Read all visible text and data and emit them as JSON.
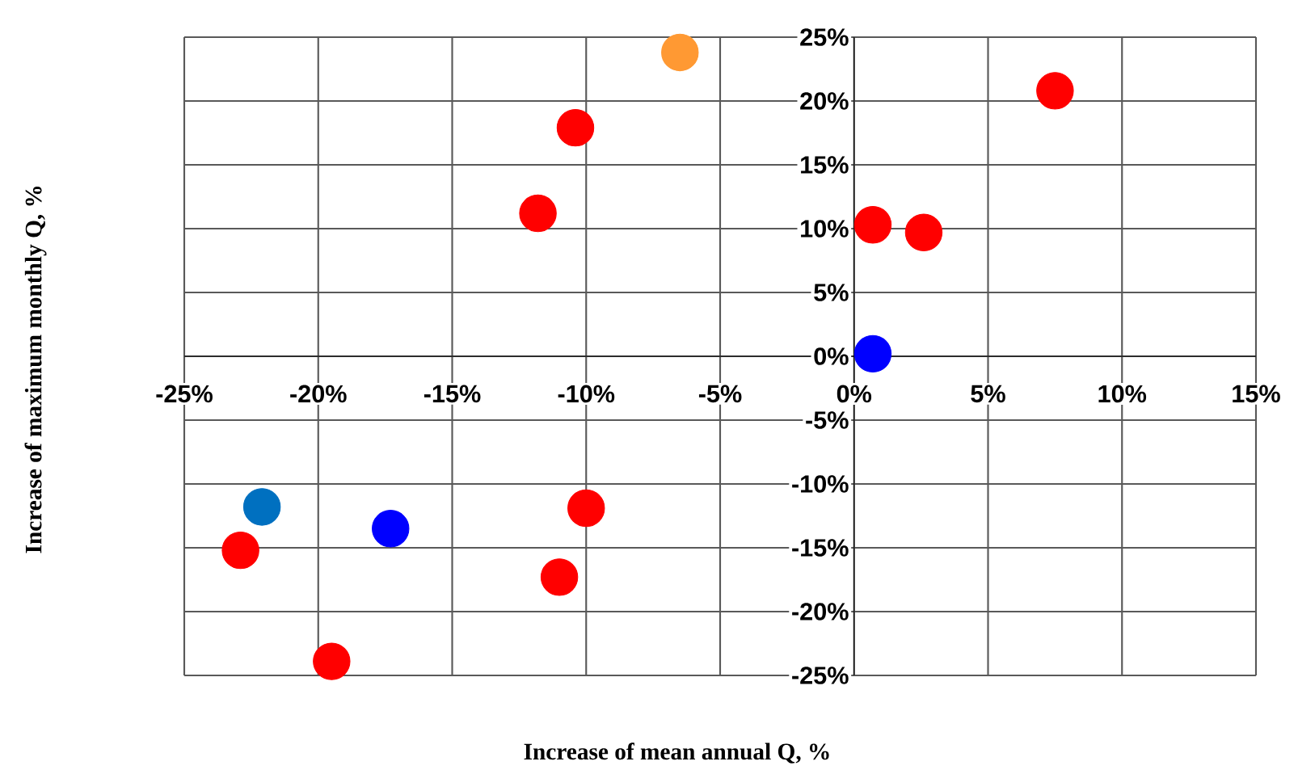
{
  "chart_data": {
    "type": "scatter",
    "xlabel": "Increase of mean annual Q, %",
    "ylabel": "Increase of maximum monthly Q, %",
    "xlim": [
      -25,
      15
    ],
    "ylim": [
      -25,
      25
    ],
    "xticks": [
      {
        "value": -25,
        "label": "-25%"
      },
      {
        "value": -20,
        "label": "-20%"
      },
      {
        "value": -15,
        "label": "-15%"
      },
      {
        "value": -10,
        "label": "-10%"
      },
      {
        "value": -5,
        "label": "-5%"
      },
      {
        "value": 0,
        "label": "0%"
      },
      {
        "value": 5,
        "label": "5%"
      },
      {
        "value": 10,
        "label": "10%"
      },
      {
        "value": 15,
        "label": "15%"
      }
    ],
    "yticks": [
      {
        "value": -25,
        "label": "-25%"
      },
      {
        "value": -20,
        "label": "-20%"
      },
      {
        "value": -15,
        "label": "-15%"
      },
      {
        "value": -10,
        "label": "-10%"
      },
      {
        "value": -5,
        "label": "-5%"
      },
      {
        "value": 0,
        "label": "0%"
      },
      {
        "value": 5,
        "label": "5%"
      },
      {
        "value": 10,
        "label": "10%"
      },
      {
        "value": 15,
        "label": "15%"
      },
      {
        "value": 20,
        "label": "20%"
      },
      {
        "value": 25,
        "label": "25%"
      }
    ],
    "grid": true,
    "series": [
      {
        "color": "#ff0000",
        "x": [
          7.5,
          -10.4,
          -11.8,
          0.7,
          2.6,
          -22.9,
          -10.0,
          -11.0,
          -19.5
        ],
        "values": [
          20.8,
          17.9,
          11.2,
          10.3,
          9.7,
          -15.2,
          -11.9,
          -17.3,
          -23.9
        ]
      },
      {
        "color": "#ff9933",
        "x": [
          -6.5
        ],
        "values": [
          23.8
        ]
      },
      {
        "color": "#0000ff",
        "x": [
          0.7,
          -17.3
        ],
        "values": [
          0.2,
          -13.5
        ]
      },
      {
        "color": "#0070c0",
        "x": [
          -22.1
        ],
        "values": [
          -11.8
        ]
      }
    ]
  }
}
